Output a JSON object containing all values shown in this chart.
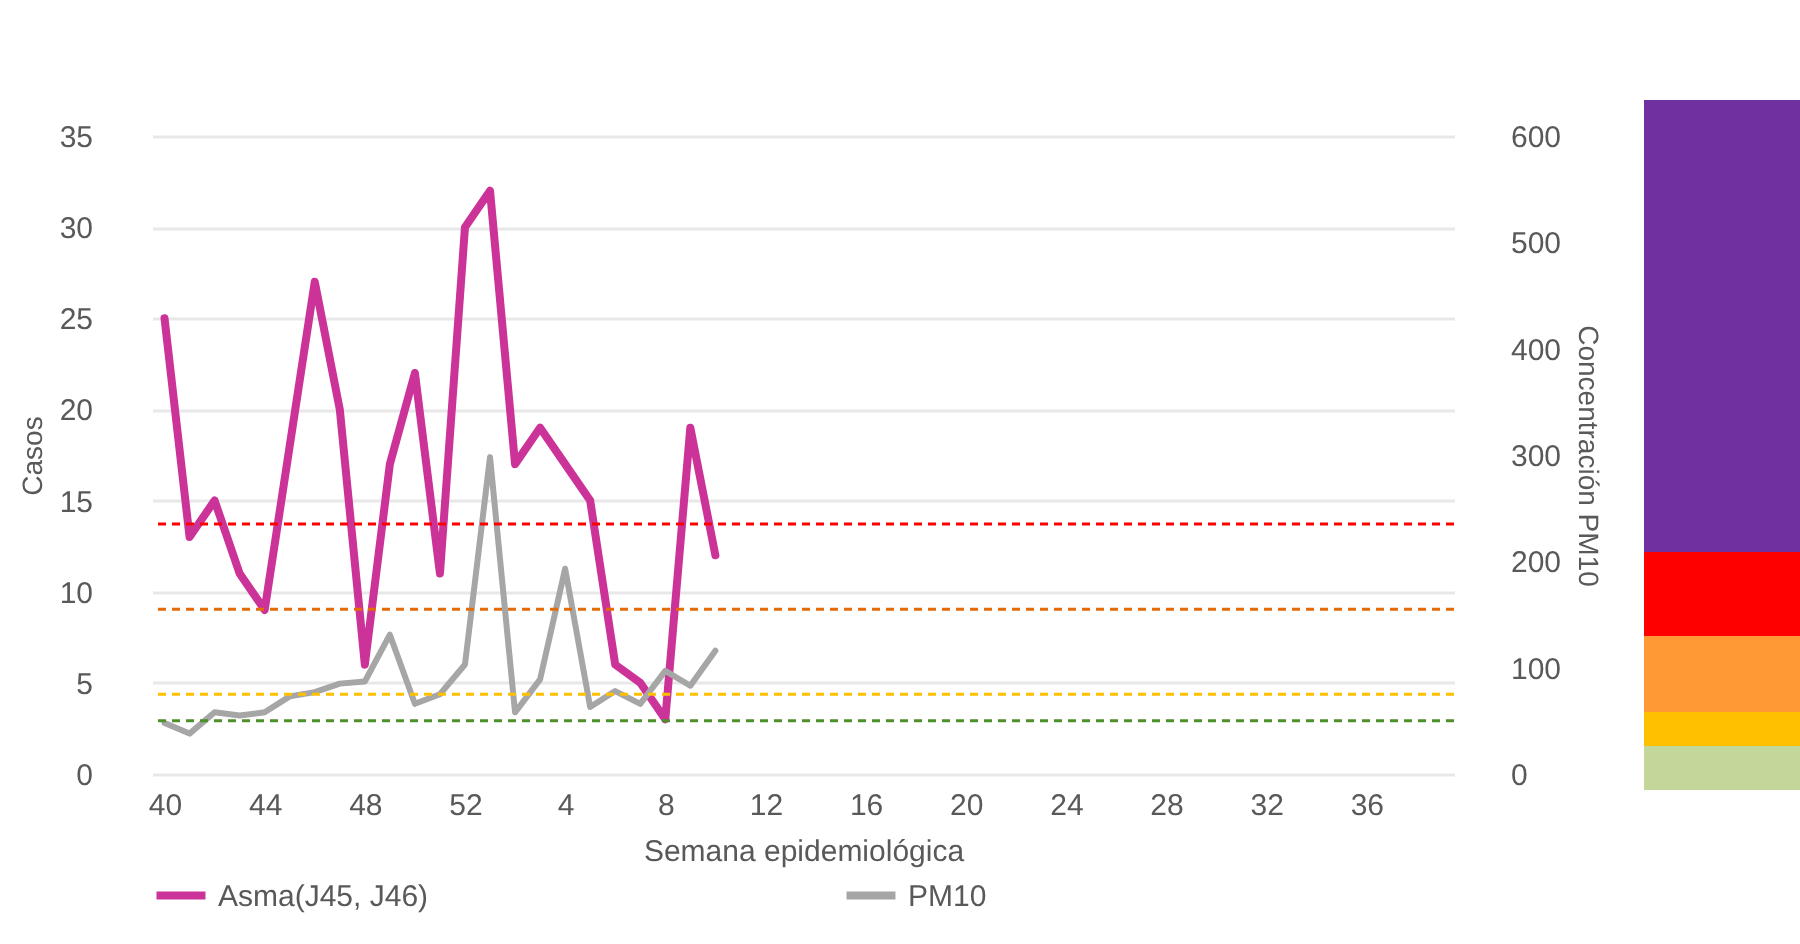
{
  "chart_data": {
    "type": "line",
    "xlabel": "Semana epidemiológica",
    "ylabel": "Casos",
    "y2label": "Concentración PM10",
    "categories": [
      "40",
      null,
      null,
      null,
      "44",
      null,
      null,
      null,
      "48",
      null,
      null,
      null,
      "52",
      null,
      null,
      null,
      "4",
      null,
      null,
      null,
      "8",
      null,
      null,
      null,
      "12",
      null,
      null,
      null,
      "16",
      null,
      null,
      null,
      "20",
      null,
      null,
      null,
      "24",
      null,
      null,
      null,
      "28",
      null,
      null,
      null,
      "32",
      null,
      null,
      null,
      "36",
      null,
      null,
      null
    ],
    "series": [
      {
        "name": "Asma(J45, J46)",
        "color": "#cc3399",
        "values": [
          25,
          13,
          15,
          11,
          9,
          18,
          27,
          20,
          6,
          17,
          22,
          11,
          30,
          32,
          17,
          19,
          17,
          15,
          6,
          5,
          3,
          19,
          12,
          null,
          null,
          null,
          null,
          null,
          null,
          null,
          null,
          null,
          null,
          null,
          null,
          null,
          null,
          null,
          null,
          null,
          null,
          null,
          null,
          null,
          null,
          null,
          null,
          null,
          null,
          null,
          null,
          null
        ]
      },
      {
        "name": "PM10",
        "color": "#a6a6a6",
        "axis": "y2",
        "values": [
          48,
          38,
          58,
          55,
          58,
          73,
          77,
          85,
          87,
          131,
          66,
          75,
          103,
          298,
          58,
          89,
          193,
          63,
          78,
          66,
          97,
          83,
          116,
          null,
          null,
          null,
          null,
          null,
          null,
          null,
          null,
          null,
          null,
          null,
          null,
          null,
          null,
          null,
          null,
          null,
          null,
          null,
          null,
          null,
          null,
          null,
          null,
          null,
          null,
          null,
          null,
          null
        ]
      }
    ],
    "ylim": [
      0,
      35
    ],
    "yticks": [
      0,
      5,
      10,
      15,
      20,
      25,
      30,
      35
    ],
    "y2lim": [
      0,
      600
    ],
    "y2ticks": [
      0,
      100,
      200,
      300,
      400,
      500,
      600
    ],
    "ref_lines": [
      {
        "axis": "y2",
        "value": 235,
        "color": "#ff0000",
        "line_style": "dashed"
      },
      {
        "axis": "y2",
        "value": 155,
        "color": "#e36c09",
        "line_style": "dashed"
      },
      {
        "axis": "y2",
        "value": 75,
        "color": "#ffc000",
        "line_style": "dashed"
      },
      {
        "axis": "y2",
        "value": 50,
        "color": "#4e8f2a",
        "line_style": "dashed"
      }
    ],
    "grid": "y",
    "legend": "bottom"
  }
}
